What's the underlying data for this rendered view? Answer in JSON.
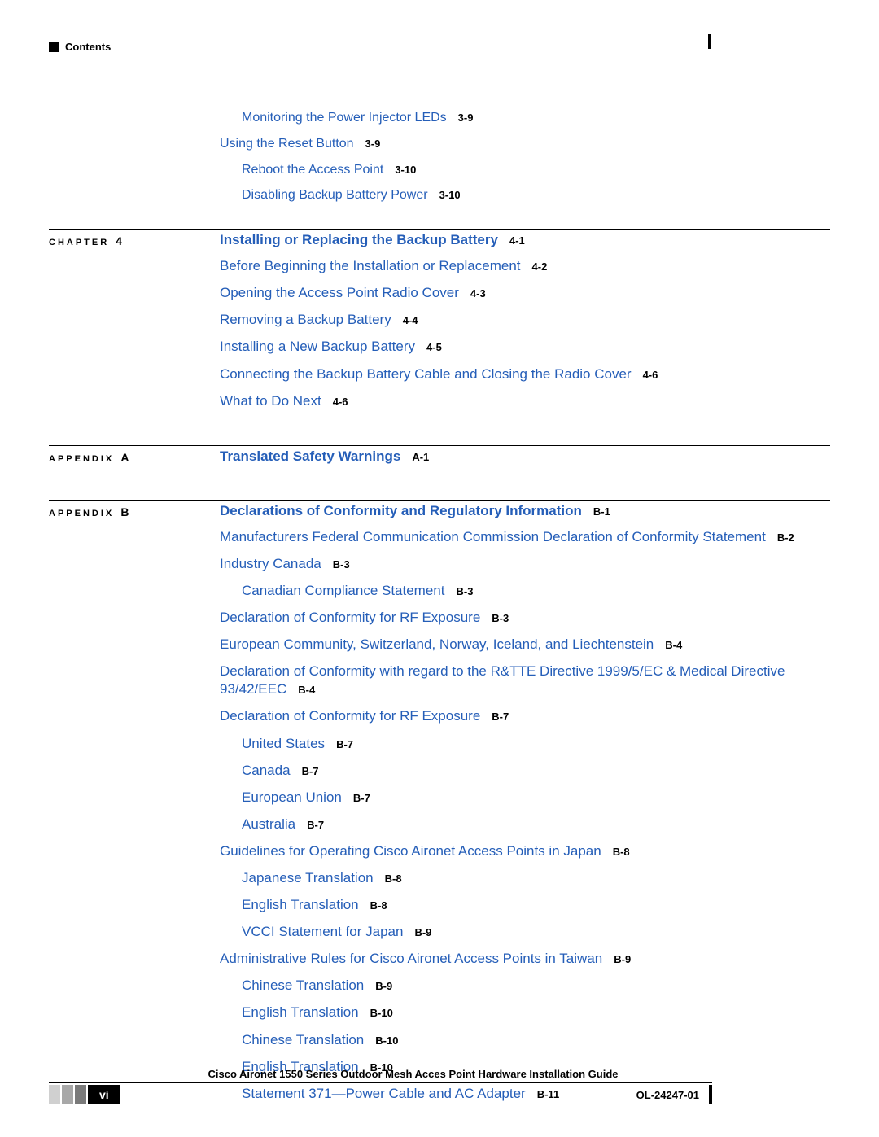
{
  "header": "Contents",
  "link_color": "#255eb8",
  "text_color": "#000000",
  "page_font_size": 17,
  "page_num_font_size": 13,
  "prelude": [
    {
      "text": "Monitoring the Power Injector LEDs",
      "pg": "3-9",
      "indent": 1
    },
    {
      "text": "Using the Reset Button",
      "pg": "3-9",
      "indent": 0
    },
    {
      "text": "Reboot the Access Point",
      "pg": "3-10",
      "indent": 1
    },
    {
      "text": "Disabling Backup Battery Power",
      "pg": "3-10",
      "indent": 1
    }
  ],
  "sections": [
    {
      "label": "CHAPTER",
      "label_suffix": "4",
      "title": "Installing or Replacing the Backup Battery",
      "title_pg": "4-1",
      "entries": [
        {
          "text": "Before Beginning the Installation or Replacement",
          "pg": "4-2",
          "indent": 0
        },
        {
          "text": "Opening the Access Point Radio Cover",
          "pg": "4-3",
          "indent": 0
        },
        {
          "text": "Removing a Backup Battery",
          "pg": "4-4",
          "indent": 0
        },
        {
          "text": "Installing a New Backup Battery",
          "pg": "4-5",
          "indent": 0
        },
        {
          "text": "Connecting the Backup Battery Cable and Closing the Radio Cover",
          "pg": "4-6",
          "indent": 0
        },
        {
          "text": "What to Do Next",
          "pg": "4-6",
          "indent": 0
        }
      ]
    },
    {
      "label": "APPENDIX",
      "label_suffix": "A",
      "title": "Translated Safety Warnings",
      "title_pg": "A-1",
      "entries": []
    },
    {
      "label": "APPENDIX",
      "label_suffix": "B",
      "title": "Declarations of Conformity and Regulatory Information",
      "title_pg": "B-1",
      "entries": [
        {
          "text": "Manufacturers Federal Communication Commission Declaration of Conformity Statement",
          "pg": "B-2",
          "indent": 0
        },
        {
          "text": "Industry Canada",
          "pg": "B-3",
          "indent": 0
        },
        {
          "text": "Canadian Compliance Statement",
          "pg": "B-3",
          "indent": 1
        },
        {
          "text": "Declaration of Conformity for RF Exposure",
          "pg": "B-3",
          "indent": 0
        },
        {
          "text": "European Community, Switzerland, Norway, Iceland, and Liechtenstein",
          "pg": "B-4",
          "indent": 0
        },
        {
          "text": "Declaration of Conformity with regard to the R&TTE Directive 1999/5/EC & Medical Directive 93/42/EEC",
          "pg": "B-4",
          "indent": 0
        },
        {
          "text": "Declaration of Conformity for RF Exposure",
          "pg": "B-7",
          "indent": 0
        },
        {
          "text": "United States",
          "pg": "B-7",
          "indent": 1
        },
        {
          "text": "Canada",
          "pg": "B-7",
          "indent": 1
        },
        {
          "text": "European Union",
          "pg": "B-7",
          "indent": 1
        },
        {
          "text": "Australia",
          "pg": "B-7",
          "indent": 1
        },
        {
          "text": "Guidelines for Operating Cisco Aironet Access Points in Japan",
          "pg": "B-8",
          "indent": 0
        },
        {
          "text": "Japanese Translation",
          "pg": "B-8",
          "indent": 1
        },
        {
          "text": "English Translation",
          "pg": "B-8",
          "indent": 1
        },
        {
          "text": "VCCI Statement for Japan",
          "pg": "B-9",
          "indent": 1
        },
        {
          "text": "Administrative Rules for Cisco Aironet Access Points in Taiwan",
          "pg": "B-9",
          "indent": 0
        },
        {
          "text": "Chinese Translation",
          "pg": "B-9",
          "indent": 1
        },
        {
          "text": "English Translation",
          "pg": "B-10",
          "indent": 1
        },
        {
          "text": "Chinese Translation",
          "pg": "B-10",
          "indent": 1
        },
        {
          "text": "English Translation",
          "pg": "B-10",
          "indent": 1
        },
        {
          "text": "Statement 371—Power Cable and AC Adapter",
          "pg": "B-11",
          "indent": 1
        }
      ]
    }
  ],
  "footer": {
    "title": "Cisco Aironet 1550 Series Outdoor Mesh Acces Point Hardware Installation Guide",
    "page_num": "vi",
    "doc_id": "OL-24247-01"
  }
}
